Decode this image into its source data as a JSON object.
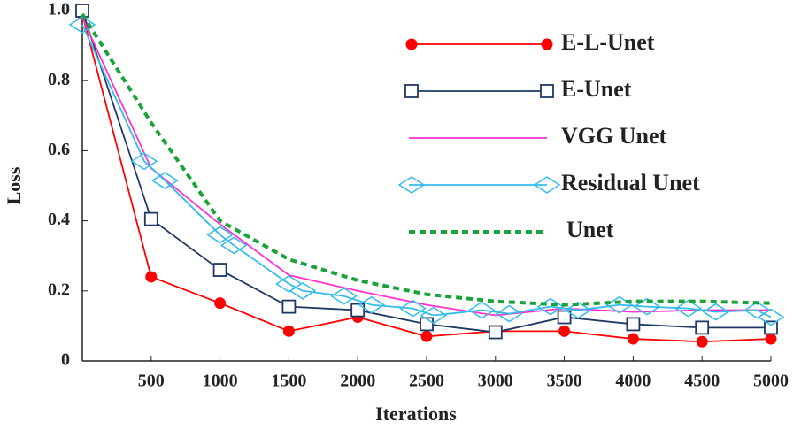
{
  "chart_data": {
    "type": "line",
    "x_label": "Iterations",
    "y_label": "Loss",
    "x": [
      0,
      500,
      1000,
      1500,
      2000,
      2500,
      3000,
      3500,
      4000,
      4500,
      5000
    ],
    "xlim": [
      0,
      5000
    ],
    "xticks": [
      500,
      1000,
      1500,
      2000,
      2500,
      3000,
      3500,
      4000,
      4500,
      5000
    ],
    "ylim": [
      0,
      1
    ],
    "yticks": [
      0,
      0.2,
      0.4,
      0.6,
      0.8,
      {
        "value": 1,
        "label": "1.0"
      }
    ],
    "series": [
      {
        "name": "E-L-Unet",
        "color": "#ff0000",
        "marker": "circle",
        "values": [
          0.99,
          0.24,
          0.165,
          0.085,
          0.125,
          0.07,
          0.085,
          0.085,
          0.063,
          0.055,
          0.063
        ]
      },
      {
        "name": "E-Unet",
        "color": "#1f3864",
        "marker": "square",
        "values": [
          1.0,
          0.405,
          0.26,
          0.155,
          0.145,
          0.105,
          0.082,
          0.125,
          0.105,
          0.095,
          0.095
        ]
      },
      {
        "name": "VGG Unet",
        "color": "#ff33cc",
        "values": [
          0.98,
          0.55,
          0.39,
          0.245,
          0.2,
          0.16,
          0.13,
          0.15,
          0.14,
          0.145,
          0.145
        ]
      },
      {
        "name": "Residual Unet",
        "color": "#33bbee",
        "marker": "diamond",
        "x": [
          0,
          450,
          600,
          1000,
          1100,
          1500,
          1600,
          1900,
          2100,
          2400,
          2550,
          2900,
          3100,
          3400,
          3600,
          3900,
          4100,
          4400,
          4600,
          4900,
          5000
        ],
        "values": [
          0.96,
          0.57,
          0.515,
          0.36,
          0.33,
          0.22,
          0.2,
          0.185,
          0.16,
          0.15,
          0.13,
          0.145,
          0.135,
          0.155,
          0.145,
          0.16,
          0.155,
          0.15,
          0.14,
          0.145,
          0.125
        ]
      },
      {
        "name": "Unet",
        "color": "#1aa33a",
        "dash": true,
        "values": [
          0.99,
          0.68,
          0.4,
          0.29,
          0.23,
          0.19,
          0.17,
          0.16,
          0.17,
          0.17,
          0.165
        ]
      }
    ]
  }
}
